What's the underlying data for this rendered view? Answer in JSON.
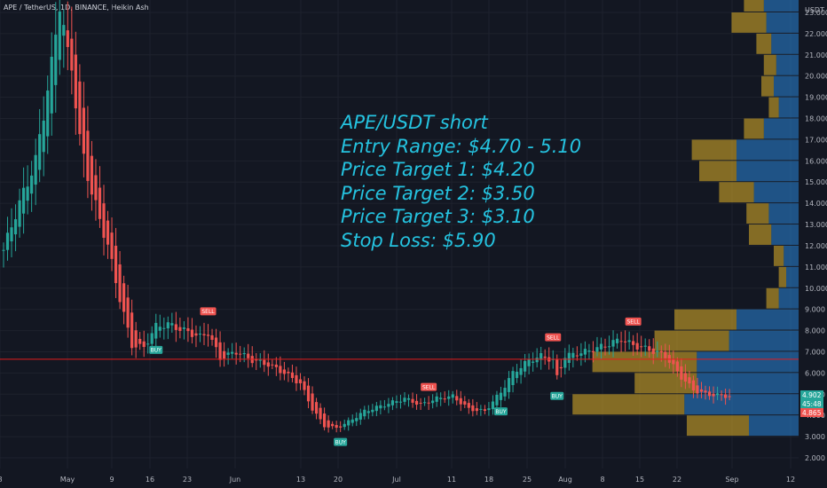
{
  "header": {
    "symbol": "APE / TetherUS, 1D, BINANCE, Heikin Ashi"
  },
  "price_axis": {
    "currency": "USDT"
  },
  "annotation": {
    "lines": [
      "APE/USDT short",
      "Entry Range: $4.70 - 5.10",
      "Price Target 1: $4.20",
      "Price Target 2: $3.50",
      "Price Target 3: $3.10",
      "Stop Loss: $5.90"
    ]
  },
  "colors": {
    "background": "#131722",
    "bull": "#26a69a",
    "bear": "#ef5350",
    "annotation": "#25c3e0",
    "horizontal_line": "#e51c1c",
    "volume_profile_up": "#2679c4",
    "volume_profile_down": "#c9a227"
  },
  "chart_data": {
    "type": "candlestick",
    "y_axis": {
      "min": 1.6,
      "max": 24.0,
      "ticks": [
        "2.000",
        "3.000",
        "4.000",
        "5.000",
        "6.000",
        "7.000",
        "8.000",
        "9.000",
        "10.000",
        "11.000",
        "12.000",
        "13.000",
        "14.000",
        "15.000",
        "16.000",
        "17.000",
        "18.000",
        "19.000",
        "20.000",
        "21.000",
        "22.000",
        "23.000"
      ]
    },
    "x_axis": {
      "ticks": [
        "8",
        "May",
        "9",
        "16",
        "23",
        "Jun",
        "13",
        "20",
        "Jul",
        "11",
        "18",
        "25",
        "Aug",
        "8",
        "15",
        "22",
        "Sep",
        "12"
      ]
    },
    "price_labels": [
      {
        "value": "4.902",
        "color": "#26a69a"
      },
      {
        "value": "45:48",
        "color": "#26a69a"
      },
      {
        "value": "4.865",
        "color": "#ef5350"
      }
    ],
    "horizontal_line": {
      "price": 6.65
    },
    "signals": [
      {
        "label": "SELL",
        "kind": "sell",
        "index": 16
      },
      {
        "label": "BUY",
        "kind": "buy",
        "index": 38
      },
      {
        "label": "SELL",
        "kind": "sell",
        "index": 51
      },
      {
        "label": "BUY",
        "kind": "buy",
        "index": 84
      },
      {
        "label": "SELL",
        "kind": "sell",
        "index": 106
      },
      {
        "label": "BUY",
        "kind": "buy",
        "index": 124
      },
      {
        "label": "SELL",
        "kind": "sell",
        "index": 137
      },
      {
        "label": "BUY",
        "kind": "buy",
        "index": 138
      },
      {
        "label": "SELL",
        "kind": "sell",
        "index": 157
      }
    ],
    "key_points": [
      [
        0,
        11.8
      ],
      [
        3,
        13.5
      ],
      [
        8,
        16.0
      ],
      [
        12,
        20.5
      ],
      [
        14,
        23.5
      ],
      [
        16,
        21.0
      ],
      [
        17,
        20.5
      ],
      [
        19,
        17.0
      ],
      [
        22,
        14.5
      ],
      [
        26,
        12.0
      ],
      [
        29,
        9.5
      ],
      [
        32,
        7.3
      ],
      [
        35,
        7.2
      ],
      [
        38,
        8.2
      ],
      [
        41,
        8.3
      ],
      [
        45,
        8.0
      ],
      [
        49,
        7.7
      ],
      [
        51,
        7.9
      ],
      [
        54,
        6.7
      ],
      [
        58,
        7.0
      ],
      [
        62,
        6.6
      ],
      [
        66,
        6.4
      ],
      [
        70,
        6.0
      ],
      [
        74,
        5.5
      ],
      [
        77,
        4.3
      ],
      [
        80,
        3.5
      ],
      [
        83,
        3.4
      ],
      [
        86,
        3.7
      ],
      [
        90,
        4.2
      ],
      [
        95,
        4.5
      ],
      [
        100,
        4.8
      ],
      [
        104,
        4.5
      ],
      [
        108,
        4.8
      ],
      [
        112,
        4.9
      ],
      [
        116,
        4.3
      ],
      [
        120,
        4.2
      ],
      [
        124,
        5.1
      ],
      [
        127,
        6.0
      ],
      [
        131,
        6.6
      ],
      [
        134,
        6.8
      ],
      [
        137,
        6.6
      ],
      [
        138,
        5.8
      ],
      [
        140,
        6.8
      ],
      [
        145,
        7.0
      ],
      [
        150,
        7.3
      ],
      [
        154,
        7.6
      ],
      [
        157,
        7.3
      ],
      [
        161,
        7.1
      ],
      [
        165,
        6.8
      ],
      [
        169,
        5.8
      ],
      [
        172,
        5.2
      ],
      [
        175,
        5.0
      ],
      [
        178,
        4.95
      ],
      [
        181,
        4.9
      ]
    ],
    "volume_profile": [
      {
        "price_low": 23.0,
        "price_high": 24.0,
        "up": 1.4,
        "down": 0.8
      },
      {
        "price_low": 22.0,
        "price_high": 23.0,
        "up": 1.3,
        "down": 1.4
      },
      {
        "price_low": 21.0,
        "price_high": 22.0,
        "up": 1.1,
        "down": 0.6
      },
      {
        "price_low": 20.0,
        "price_high": 21.0,
        "up": 0.9,
        "down": 0.5
      },
      {
        "price_low": 19.0,
        "price_high": 20.0,
        "up": 1.0,
        "down": 0.5
      },
      {
        "price_low": 18.0,
        "price_high": 19.0,
        "up": 0.8,
        "down": 0.4
      },
      {
        "price_low": 17.0,
        "price_high": 18.0,
        "up": 1.4,
        "down": 0.8
      },
      {
        "price_low": 16.0,
        "price_high": 17.0,
        "up": 2.5,
        "down": 1.8
      },
      {
        "price_low": 15.0,
        "price_high": 16.0,
        "up": 2.5,
        "down": 1.5
      },
      {
        "price_low": 14.0,
        "price_high": 15.0,
        "up": 1.8,
        "down": 1.4
      },
      {
        "price_low": 13.0,
        "price_high": 14.0,
        "up": 1.2,
        "down": 0.9
      },
      {
        "price_low": 12.0,
        "price_high": 13.0,
        "up": 1.1,
        "down": 0.9
      },
      {
        "price_low": 11.0,
        "price_high": 12.0,
        "up": 0.6,
        "down": 0.4
      },
      {
        "price_low": 10.0,
        "price_high": 11.0,
        "up": 0.5,
        "down": 0.3
      },
      {
        "price_low": 9.0,
        "price_high": 10.0,
        "up": 0.8,
        "down": 0.5
      },
      {
        "price_low": 8.0,
        "price_high": 9.0,
        "up": 2.5,
        "down": 2.5
      },
      {
        "price_low": 7.0,
        "price_high": 8.0,
        "up": 2.8,
        "down": 3.0
      },
      {
        "price_low": 6.0,
        "price_high": 7.0,
        "up": 4.1,
        "down": 4.2
      },
      {
        "price_low": 5.0,
        "price_high": 6.0,
        "up": 4.1,
        "down": 2.5
      },
      {
        "price_low": 4.0,
        "price_high": 5.0,
        "up": 4.6,
        "down": 4.5
      },
      {
        "price_low": 3.0,
        "price_high": 4.0,
        "up": 2.0,
        "down": 2.5
      }
    ]
  }
}
